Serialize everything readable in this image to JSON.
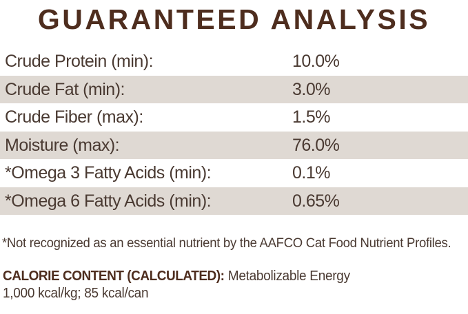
{
  "title": "GUARANTEED ANALYSIS",
  "analysis_table": {
    "rows": [
      {
        "label": "Crude Protein (min):",
        "value": "10.0%"
      },
      {
        "label": "Crude Fat (min):",
        "value": "3.0%"
      },
      {
        "label": "Crude Fiber (max):",
        "value": "1.5%"
      },
      {
        "label": "Moisture (max):",
        "value": "76.0%"
      },
      {
        "label": "*Omega 3 Fatty Acids (min):",
        "value": "0.1%"
      },
      {
        "label": "*Omega 6 Fatty Acids (min):",
        "value": "0.65%"
      }
    ]
  },
  "footnote": "*Not recognized as an essential nutrient by the AAFCO Cat Food Nutrient Profiles.",
  "calorie_content": {
    "heading": "CALORIE CONTENT (CALCULATED):",
    "description": "Metabolizable Energy",
    "values_line": "1,000 kcal/kg; 85 kcal/can"
  },
  "colors": {
    "title_brown": "#4e2d1e",
    "text_brown": "#4a3a32",
    "stripe_beige": "#dfd9d3",
    "page_background": "#ffffff"
  }
}
